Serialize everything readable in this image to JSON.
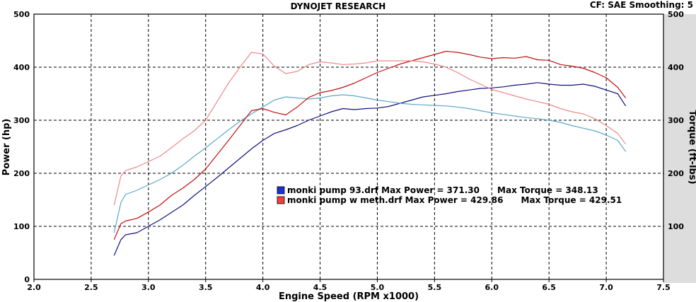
{
  "chart_data": {
    "type": "line",
    "title": "DYNOJET RESEARCH",
    "corner_info": "CF: SAE  Smoothing: 5",
    "xlabel": "Engine Speed (RPM x1000)",
    "ylabel_left": "Power (hp)",
    "ylabel_right": "Torque (ft-lbs)",
    "xlim": [
      2.0,
      7.5
    ],
    "ylim": [
      0,
      500
    ],
    "x_ticks": [
      "2.0",
      "2.5",
      "3.0",
      "3.5",
      "4.0",
      "4.5",
      "5.0",
      "5.5",
      "6.0",
      "6.5",
      "7.0",
      "7.5"
    ],
    "y_ticks": [
      "0",
      "100",
      "200",
      "300",
      "400",
      "500"
    ],
    "y_ticks_right": [
      "100",
      "200",
      "300",
      "400",
      "500"
    ],
    "grid": true,
    "legend": [
      {
        "text": "monki pump 93.drf Max Power = 371.30      Max Torque = 348.13",
        "color": "#1a1aa8"
      },
      {
        "text": "monki pump w meth.drf Max Power = 429.86      Max Torque = 429.51",
        "color": "#e01818"
      }
    ],
    "series": [
      {
        "kind": "power",
        "run": 1,
        "color": "#101080",
        "points": [
          [
            2.7,
            45
          ],
          [
            2.76,
            75
          ],
          [
            2.8,
            84
          ],
          [
            2.9,
            88
          ],
          [
            3.0,
            100
          ],
          [
            3.1,
            112
          ],
          [
            3.2,
            126
          ],
          [
            3.3,
            140
          ],
          [
            3.4,
            158
          ],
          [
            3.5,
            175
          ],
          [
            3.6,
            192
          ],
          [
            3.7,
            210
          ],
          [
            3.8,
            228
          ],
          [
            3.9,
            246
          ],
          [
            4.0,
            262
          ],
          [
            4.1,
            275
          ],
          [
            4.2,
            282
          ],
          [
            4.3,
            290
          ],
          [
            4.4,
            300
          ],
          [
            4.5,
            308
          ],
          [
            4.6,
            316
          ],
          [
            4.7,
            322
          ],
          [
            4.8,
            320
          ],
          [
            4.9,
            322
          ],
          [
            5.0,
            323
          ],
          [
            5.1,
            326
          ],
          [
            5.2,
            332
          ],
          [
            5.3,
            338
          ],
          [
            5.4,
            344
          ],
          [
            5.5,
            347
          ],
          [
            5.6,
            350
          ],
          [
            5.7,
            354
          ],
          [
            5.8,
            357
          ],
          [
            5.9,
            360
          ],
          [
            6.0,
            361
          ],
          [
            6.1,
            363
          ],
          [
            6.2,
            366
          ],
          [
            6.3,
            368
          ],
          [
            6.4,
            371
          ],
          [
            6.5,
            368
          ],
          [
            6.6,
            366
          ],
          [
            6.7,
            366
          ],
          [
            6.8,
            368
          ],
          [
            6.9,
            364
          ],
          [
            7.0,
            357
          ],
          [
            7.1,
            350
          ],
          [
            7.17,
            327
          ]
        ]
      },
      {
        "kind": "torque",
        "run": 1,
        "color": "#5aa8c8",
        "points": [
          [
            2.7,
            88
          ],
          [
            2.76,
            145
          ],
          [
            2.8,
            160
          ],
          [
            2.9,
            168
          ],
          [
            3.0,
            178
          ],
          [
            3.1,
            188
          ],
          [
            3.2,
            200
          ],
          [
            3.3,
            215
          ],
          [
            3.4,
            232
          ],
          [
            3.5,
            248
          ],
          [
            3.6,
            265
          ],
          [
            3.7,
            282
          ],
          [
            3.8,
            298
          ],
          [
            3.9,
            312
          ],
          [
            4.0,
            325
          ],
          [
            4.1,
            338
          ],
          [
            4.2,
            344
          ],
          [
            4.3,
            342
          ],
          [
            4.4,
            340
          ],
          [
            4.5,
            342
          ],
          [
            4.6,
            346
          ],
          [
            4.7,
            348
          ],
          [
            4.8,
            346
          ],
          [
            4.9,
            342
          ],
          [
            5.0,
            338
          ],
          [
            5.1,
            335
          ],
          [
            5.2,
            332
          ],
          [
            5.3,
            330
          ],
          [
            5.4,
            329
          ],
          [
            5.5,
            328
          ],
          [
            5.6,
            327
          ],
          [
            5.7,
            325
          ],
          [
            5.8,
            322
          ],
          [
            5.9,
            318
          ],
          [
            6.0,
            314
          ],
          [
            6.1,
            311
          ],
          [
            6.2,
            308
          ],
          [
            6.3,
            305
          ],
          [
            6.4,
            303
          ],
          [
            6.5,
            300
          ],
          [
            6.6,
            296
          ],
          [
            6.7,
            290
          ],
          [
            6.8,
            285
          ],
          [
            6.9,
            280
          ],
          [
            7.0,
            272
          ],
          [
            7.1,
            262
          ],
          [
            7.17,
            241
          ]
        ]
      },
      {
        "kind": "power",
        "run": 2,
        "color": "#c01010",
        "points": [
          [
            2.7,
            75
          ],
          [
            2.76,
            105
          ],
          [
            2.8,
            110
          ],
          [
            2.9,
            115
          ],
          [
            3.0,
            127
          ],
          [
            3.1,
            140
          ],
          [
            3.2,
            158
          ],
          [
            3.3,
            172
          ],
          [
            3.4,
            188
          ],
          [
            3.5,
            208
          ],
          [
            3.6,
            235
          ],
          [
            3.7,
            262
          ],
          [
            3.8,
            290
          ],
          [
            3.9,
            318
          ],
          [
            4.0,
            322
          ],
          [
            4.1,
            315
          ],
          [
            4.2,
            310
          ],
          [
            4.3,
            325
          ],
          [
            4.4,
            343
          ],
          [
            4.5,
            352
          ],
          [
            4.6,
            356
          ],
          [
            4.7,
            362
          ],
          [
            4.8,
            370
          ],
          [
            4.9,
            380
          ],
          [
            5.0,
            390
          ],
          [
            5.1,
            398
          ],
          [
            5.2,
            406
          ],
          [
            5.3,
            412
          ],
          [
            5.4,
            418
          ],
          [
            5.5,
            424
          ],
          [
            5.6,
            430
          ],
          [
            5.7,
            428
          ],
          [
            5.8,
            424
          ],
          [
            5.9,
            419
          ],
          [
            6.0,
            416
          ],
          [
            6.1,
            418
          ],
          [
            6.2,
            417
          ],
          [
            6.3,
            420
          ],
          [
            6.4,
            414
          ],
          [
            6.5,
            413
          ],
          [
            6.6,
            405
          ],
          [
            6.7,
            402
          ],
          [
            6.8,
            398
          ],
          [
            6.9,
            390
          ],
          [
            7.0,
            380
          ],
          [
            7.1,
            362
          ],
          [
            7.17,
            342
          ]
        ]
      },
      {
        "kind": "torque",
        "run": 2,
        "color": "#f08888",
        "points": [
          [
            2.7,
            140
          ],
          [
            2.76,
            195
          ],
          [
            2.8,
            205
          ],
          [
            2.9,
            212
          ],
          [
            3.0,
            222
          ],
          [
            3.1,
            232
          ],
          [
            3.2,
            248
          ],
          [
            3.3,
            265
          ],
          [
            3.4,
            280
          ],
          [
            3.5,
            300
          ],
          [
            3.6,
            335
          ],
          [
            3.7,
            370
          ],
          [
            3.8,
            400
          ],
          [
            3.9,
            428
          ],
          [
            4.0,
            425
          ],
          [
            4.1,
            402
          ],
          [
            4.2,
            388
          ],
          [
            4.3,
            392
          ],
          [
            4.4,
            405
          ],
          [
            4.5,
            410
          ],
          [
            4.6,
            408
          ],
          [
            4.7,
            405
          ],
          [
            4.8,
            406
          ],
          [
            4.9,
            408
          ],
          [
            5.0,
            412
          ],
          [
            5.1,
            412
          ],
          [
            5.2,
            412
          ],
          [
            5.3,
            412
          ],
          [
            5.4,
            410
          ],
          [
            5.5,
            406
          ],
          [
            5.6,
            400
          ],
          [
            5.7,
            390
          ],
          [
            5.8,
            378
          ],
          [
            5.9,
            368
          ],
          [
            6.0,
            358
          ],
          [
            6.1,
            352
          ],
          [
            6.2,
            346
          ],
          [
            6.3,
            340
          ],
          [
            6.4,
            335
          ],
          [
            6.5,
            330
          ],
          [
            6.6,
            322
          ],
          [
            6.7,
            316
          ],
          [
            6.8,
            312
          ],
          [
            6.9,
            303
          ],
          [
            7.0,
            290
          ],
          [
            7.1,
            275
          ],
          [
            7.17,
            255
          ]
        ]
      }
    ]
  }
}
